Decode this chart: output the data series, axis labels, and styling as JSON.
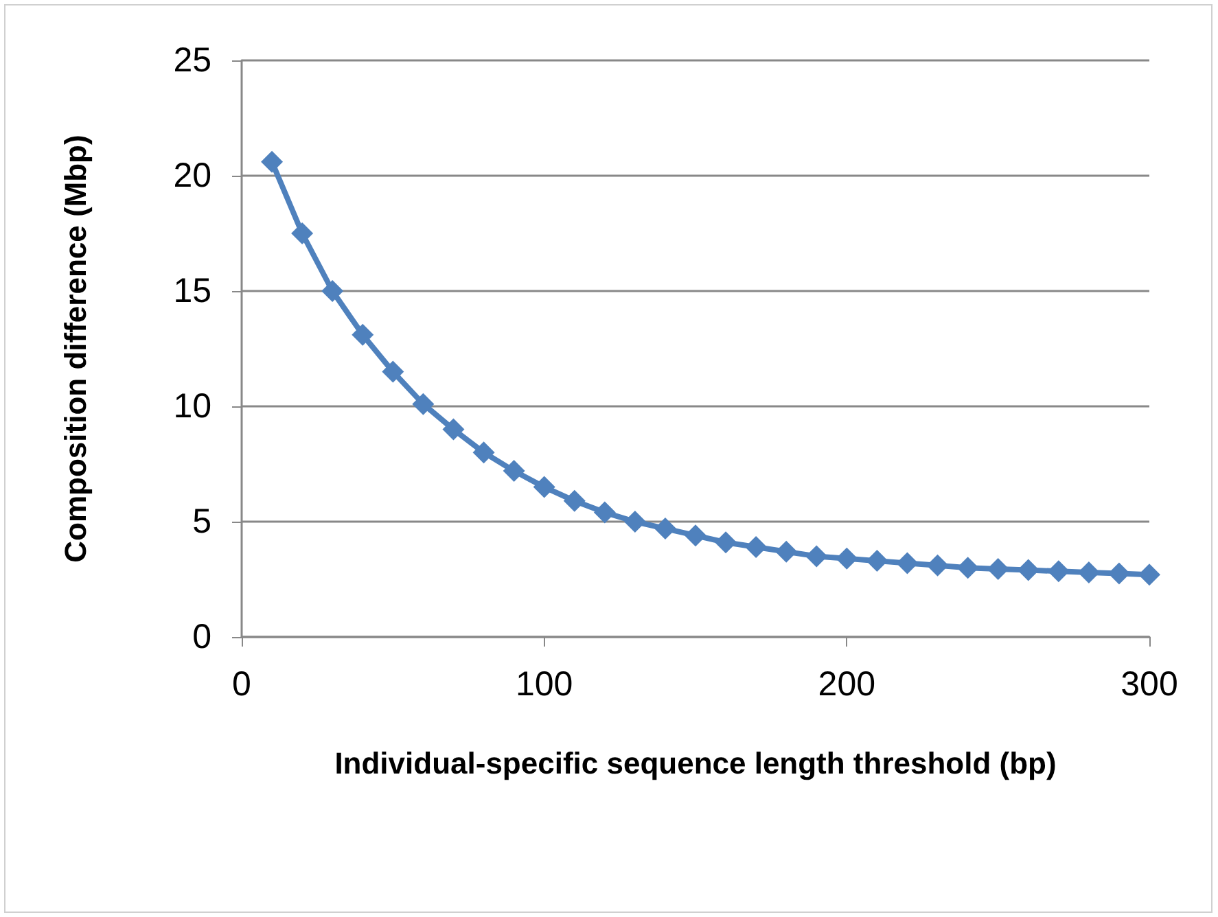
{
  "chart_data": {
    "type": "line",
    "xlabel": "Individual-specific sequence length threshold (bp)",
    "ylabel": "Composition difference (Mbp)",
    "x": [
      10,
      20,
      30,
      40,
      50,
      60,
      70,
      80,
      90,
      100,
      110,
      120,
      130,
      140,
      150,
      160,
      170,
      180,
      190,
      200,
      210,
      220,
      230,
      240,
      250,
      260,
      270,
      280,
      290,
      300
    ],
    "series": [
      {
        "color": "#4f81bd",
        "values": [
          20.6,
          17.5,
          15.0,
          13.1,
          11.5,
          10.1,
          9.0,
          8.0,
          7.2,
          6.5,
          5.9,
          5.4,
          5.0,
          4.7,
          4.4,
          4.1,
          3.9,
          3.7,
          3.5,
          3.4,
          3.3,
          3.2,
          3.1,
          3.0,
          2.95,
          2.9,
          2.85,
          2.8,
          2.75,
          2.7
        ]
      }
    ],
    "xlim": [
      0,
      300
    ],
    "xticks": [
      0,
      100,
      200,
      300
    ],
    "ylim": [
      0,
      25
    ],
    "yticks": [
      0,
      5,
      10,
      15,
      20,
      25
    ],
    "grid": "y",
    "marker": "diamond",
    "line_style": "solid"
  }
}
